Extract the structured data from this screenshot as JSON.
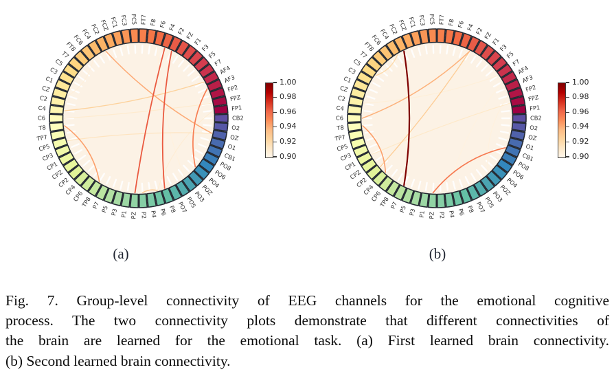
{
  "figure": {
    "subfig_a_label": "(a)",
    "subfig_b_label": "(b)",
    "caption_lines": [
      "Fig. 7.  Group-level connectivity of EEG channels for the emotional cognitive",
      "process. The two connectivity plots demonstrate that different connectivities of",
      "the brain are learned for the emotional task. (a) First learned brain connectivity.",
      "(b) Second learned brain connectivity."
    ]
  },
  "colorbar": {
    "ticks": [
      "1.00",
      "0.98",
      "0.96",
      "0.94",
      "0.92",
      "0.90"
    ],
    "vmin": 0.9,
    "vmax": 1.0
  },
  "colors": {
    "page_bg": "#ffffff",
    "plot_interior": "#fcf2e5",
    "node_border": "#252a33",
    "channel_label": "#2e2e2e",
    "tick_label": "#262626",
    "caption_text": "#0c0c0c",
    "spectral_stops": [
      "#9e0142",
      "#d53e4f",
      "#f46d43",
      "#fdae61",
      "#fee08b",
      "#ffffbf",
      "#e6f598",
      "#abdda4",
      "#66c2a5",
      "#3288bd",
      "#5e4fa2"
    ],
    "orrd_stops": [
      "#fff7ec",
      "#fee8c8",
      "#fdd49e",
      "#fdbb84",
      "#fc8d59",
      "#ef6548",
      "#d7301f",
      "#b30000",
      "#7f0000"
    ]
  },
  "chart_data": {
    "type": "chord-connectivity",
    "title": "Group-level connectivity of EEG channels for the emotional cognitive process",
    "value_range": [
      0.9,
      1.0
    ],
    "node_colormap": "Spectral",
    "edge_colormap": "OrRd",
    "channels": [
      "FP1",
      "FPZ",
      "FP2",
      "AF3",
      "AF4",
      "F7",
      "F5",
      "F3",
      "F1",
      "FZ",
      "F2",
      "F4",
      "F6",
      "F8",
      "FT7",
      "FC5",
      "FC3",
      "FC1",
      "FCZ",
      "FC2",
      "FC4",
      "FC6",
      "FT8",
      "T7",
      "C5",
      "C3",
      "C1",
      "CZ",
      "C2",
      "C4",
      "C6",
      "T8",
      "TP7",
      "CP5",
      "CP3",
      "CP1",
      "CPZ",
      "CP2",
      "CP4",
      "CP6",
      "TP8",
      "P7",
      "P5",
      "P3",
      "P1",
      "PZ",
      "P2",
      "P4",
      "P6",
      "P8",
      "PO7",
      "PO5",
      "PO3",
      "POZ",
      "PO4",
      "PO6",
      "PO8",
      "CB1",
      "O1",
      "OZ",
      "O2",
      "CB2"
    ],
    "plots": [
      {
        "id": "a",
        "label": "(a)",
        "description": "First learned brain connectivity",
        "chords": [
          {
            "a": "F4",
            "b": "PZ",
            "v": 0.965
          },
          {
            "a": "F2",
            "b": "P8",
            "v": 0.965
          },
          {
            "a": "AF3",
            "b": "PO4",
            "v": 0.955
          },
          {
            "a": "T8",
            "b": "TP8",
            "v": 0.945
          },
          {
            "a": "FC2",
            "b": "OZ",
            "v": 0.942
          },
          {
            "a": "P2",
            "b": "P6",
            "v": 0.93
          },
          {
            "a": "C4",
            "b": "AF4",
            "v": 0.926
          },
          {
            "a": "CP5",
            "b": "OZ",
            "v": 0.915
          },
          {
            "a": "C6",
            "b": "FPZ",
            "v": 0.91
          },
          {
            "a": "FP1",
            "b": "P6",
            "v": 0.908
          },
          {
            "a": "CZ",
            "b": "FC6",
            "v": 0.906
          },
          {
            "a": "F6",
            "b": "PO3",
            "v": 0.905
          }
        ]
      },
      {
        "id": "b",
        "label": "(b)",
        "description": "Second learned brain connectivity",
        "chords": [
          {
            "a": "FC2",
            "b": "P7",
            "v": 1.0
          },
          {
            "a": "CB1",
            "b": "PZ",
            "v": 0.956
          },
          {
            "a": "T8",
            "b": "CP4",
            "v": 0.945
          },
          {
            "a": "C6",
            "b": "F2",
            "v": 0.94
          },
          {
            "a": "F2",
            "b": "CP2",
            "v": 0.928
          },
          {
            "a": "FC4",
            "b": "C5",
            "v": 0.922
          },
          {
            "a": "FPZ",
            "b": "CP1",
            "v": 0.912
          },
          {
            "a": "C2",
            "b": "F7",
            "v": 0.907
          },
          {
            "a": "FP2",
            "b": "POZ",
            "v": 0.905
          },
          {
            "a": "AF4",
            "b": "P4",
            "v": 0.904
          }
        ]
      }
    ]
  }
}
